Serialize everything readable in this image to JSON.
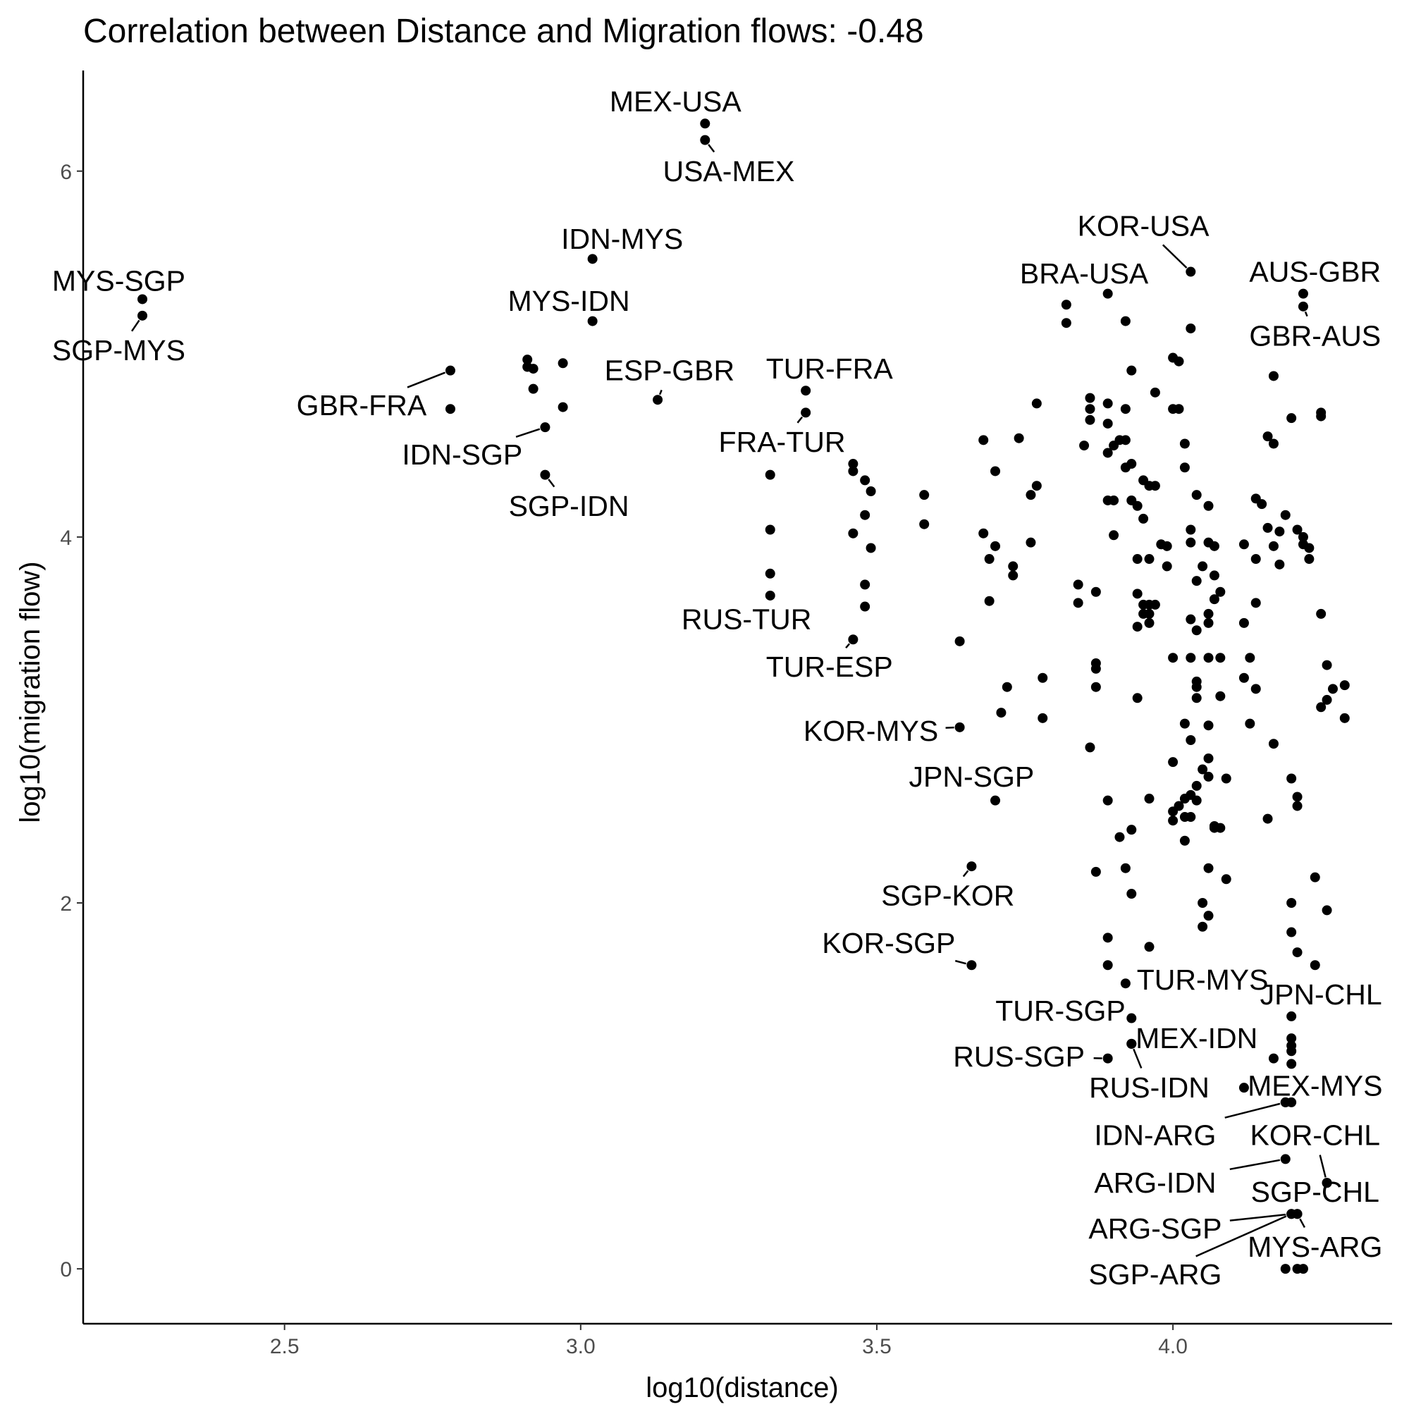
{
  "chart_data": {
    "type": "scatter",
    "title": "Correlation between Distance and Migration flows: -0.48",
    "xlabel": "log10(distance)",
    "ylabel": "log10(migration flow)",
    "xlim": [
      2.16,
      4.37
    ],
    "ylim": [
      -0.3,
      6.55
    ],
    "x_ticks": [
      2.5,
      3.0,
      3.5,
      4.0
    ],
    "x_tick_labels": [
      "2.5",
      "3.0",
      "3.5",
      "4.0"
    ],
    "y_ticks": [
      0,
      2,
      4,
      6
    ],
    "y_tick_labels": [
      "0",
      "2",
      "4",
      "6"
    ],
    "grid": false,
    "legend": "none",
    "point_color": "#000000",
    "labeled_points": [
      {
        "label": "MEX-USA",
        "x": 3.21,
        "y": 6.26,
        "lx": 3.16,
        "ly": 6.38
      },
      {
        "label": "USA-MEX",
        "x": 3.21,
        "y": 6.17,
        "lx": 3.25,
        "ly": 6.0
      },
      {
        "label": "IDN-MYS",
        "x": 3.02,
        "y": 5.52,
        "lx": 3.07,
        "ly": 5.63
      },
      {
        "label": "MYS-IDN",
        "x": 3.02,
        "y": 5.18,
        "lx": 2.98,
        "ly": 5.29
      },
      {
        "label": "MYS-SGP",
        "x": 2.26,
        "y": 5.3,
        "lx": 2.22,
        "ly": 5.4
      },
      {
        "label": "SGP-MYS",
        "x": 2.26,
        "y": 5.21,
        "lx": 2.22,
        "ly": 5.02
      },
      {
        "label": "GBR-FRA",
        "x": 2.78,
        "y": 4.91,
        "lx": 2.63,
        "ly": 4.72
      },
      {
        "label": "IDN-SGP",
        "x": 2.94,
        "y": 4.6,
        "lx": 2.8,
        "ly": 4.45
      },
      {
        "label": "SGP-IDN",
        "x": 2.94,
        "y": 4.34,
        "lx": 2.98,
        "ly": 4.17
      },
      {
        "label": "ESP-GBR",
        "x": 3.13,
        "y": 4.75,
        "lx": 3.15,
        "ly": 4.91
      },
      {
        "label": "TUR-FRA",
        "x": 3.38,
        "y": 4.8,
        "lx": 3.42,
        "ly": 4.92
      },
      {
        "label": "FRA-TUR",
        "x": 3.38,
        "y": 4.68,
        "lx": 3.34,
        "ly": 4.52
      },
      {
        "label": "RUS-TUR",
        "x": 3.32,
        "y": 3.68,
        "lx": 3.28,
        "ly": 3.55
      },
      {
        "label": "TUR-ESP",
        "x": 3.46,
        "y": 3.44,
        "lx": 3.42,
        "ly": 3.29
      },
      {
        "label": "KOR-MYS",
        "x": 3.64,
        "y": 2.96,
        "lx": 3.49,
        "ly": 2.94
      },
      {
        "label": "JPN-SGP",
        "x": 3.7,
        "y": 2.56,
        "lx": 3.66,
        "ly": 2.69
      },
      {
        "label": "SGP-KOR",
        "x": 3.66,
        "y": 2.2,
        "lx": 3.62,
        "ly": 2.04
      },
      {
        "label": "KOR-SGP",
        "x": 3.66,
        "y": 1.66,
        "lx": 3.52,
        "ly": 1.78
      },
      {
        "label": "TUR-MYS",
        "x": 3.92,
        "y": 1.56,
        "lx": 4.05,
        "ly": 1.58
      },
      {
        "label": "TUR-SGP",
        "x": 3.93,
        "y": 1.37,
        "lx": 3.81,
        "ly": 1.41
      },
      {
        "label": "RUS-SGP",
        "x": 3.89,
        "y": 1.15,
        "lx": 3.74,
        "ly": 1.16
      },
      {
        "label": "MEX-IDN",
        "x": 3.93,
        "y": 1.23,
        "lx": 4.04,
        "ly": 1.26
      },
      {
        "label": "RUS-IDN",
        "x": 3.93,
        "y": 1.23,
        "lx": 3.96,
        "ly": 0.99
      },
      {
        "label": "JPN-CHL",
        "x": 4.2,
        "y": 1.38,
        "lx": 4.25,
        "ly": 1.5
      },
      {
        "label": "MEX-MYS",
        "x": 4.19,
        "y": 0.91,
        "lx": 4.24,
        "ly": 1.0
      },
      {
        "label": "IDN-ARG",
        "x": 4.19,
        "y": 0.91,
        "lx": 3.97,
        "ly": 0.73
      },
      {
        "label": "KOR-CHL",
        "x": 4.26,
        "y": 0.47,
        "lx": 4.24,
        "ly": 0.73
      },
      {
        "label": "ARG-IDN",
        "x": 4.19,
        "y": 0.6,
        "lx": 3.97,
        "ly": 0.47
      },
      {
        "label": "SGP-CHL",
        "x": 4.26,
        "y": 0.47,
        "lx": 4.24,
        "ly": 0.42
      },
      {
        "label": "ARG-SGP",
        "x": 4.2,
        "y": 0.3,
        "lx": 3.97,
        "ly": 0.22
      },
      {
        "label": "MYS-ARG",
        "x": 4.21,
        "y": 0.3,
        "lx": 4.24,
        "ly": 0.12
      },
      {
        "label": "SGP-ARG",
        "x": 4.2,
        "y": 0.3,
        "lx": 3.97,
        "ly": -0.03
      },
      {
        "label": "KOR-USA",
        "x": 4.03,
        "y": 5.45,
        "lx": 3.95,
        "ly": 5.7
      },
      {
        "label": "BRA-USA",
        "x": 3.89,
        "y": 5.33,
        "lx": 3.85,
        "ly": 5.44
      },
      {
        "label": "AUS-GBR",
        "x": 4.22,
        "y": 5.33,
        "lx": 4.24,
        "ly": 5.45
      },
      {
        "label": "GBR-AUS",
        "x": 4.22,
        "y": 5.26,
        "lx": 4.24,
        "ly": 5.1
      }
    ],
    "points": [
      [
        3.82,
        5.27
      ],
      [
        3.82,
        5.17
      ],
      [
        3.92,
        5.18
      ],
      [
        4.03,
        5.14
      ],
      [
        4.0,
        4.98
      ],
      [
        4.01,
        4.96
      ],
      [
        3.93,
        4.91
      ],
      [
        3.97,
        4.79
      ],
      [
        3.86,
        4.76
      ],
      [
        3.89,
        4.73
      ],
      [
        3.86,
        4.7
      ],
      [
        3.92,
        4.7
      ],
      [
        4.0,
        4.7
      ],
      [
        4.01,
        4.7
      ],
      [
        3.86,
        4.64
      ],
      [
        3.89,
        4.62
      ],
      [
        3.91,
        4.53
      ],
      [
        3.92,
        4.53
      ],
      [
        3.89,
        4.46
      ],
      [
        3.93,
        4.4
      ],
      [
        3.92,
        4.38
      ],
      [
        3.95,
        4.31
      ],
      [
        3.96,
        4.28
      ],
      [
        3.97,
        4.28
      ],
      [
        4.02,
        4.51
      ],
      [
        4.02,
        4.38
      ],
      [
        4.04,
        4.23
      ],
      [
        4.06,
        4.17
      ],
      [
        3.89,
        4.2
      ],
      [
        3.9,
        4.2
      ],
      [
        3.93,
        4.2
      ],
      [
        3.94,
        4.17
      ],
      [
        3.95,
        4.1
      ],
      [
        4.03,
        4.04
      ],
      [
        3.99,
        3.95
      ],
      [
        3.98,
        3.96
      ],
      [
        4.03,
        3.97
      ],
      [
        4.06,
        3.97
      ],
      [
        4.07,
        3.95
      ],
      [
        3.94,
        3.88
      ],
      [
        3.96,
        3.88
      ],
      [
        3.99,
        3.84
      ],
      [
        4.05,
        3.84
      ],
      [
        4.07,
        3.79
      ],
      [
        4.04,
        3.76
      ],
      [
        4.08,
        3.7
      ],
      [
        4.07,
        3.66
      ],
      [
        3.94,
        3.69
      ],
      [
        3.95,
        3.63
      ],
      [
        3.96,
        3.63
      ],
      [
        3.97,
        3.63
      ],
      [
        3.96,
        3.58
      ],
      [
        3.95,
        3.58
      ],
      [
        3.96,
        3.53
      ],
      [
        3.94,
        3.51
      ],
      [
        4.03,
        3.55
      ],
      [
        4.06,
        3.58
      ],
      [
        4.06,
        3.53
      ],
      [
        4.04,
        3.49
      ],
      [
        4.0,
        3.34
      ],
      [
        4.03,
        3.34
      ],
      [
        4.06,
        3.34
      ],
      [
        4.08,
        3.34
      ],
      [
        3.87,
        3.31
      ],
      [
        3.87,
        3.28
      ],
      [
        4.04,
        3.21
      ],
      [
        4.04,
        3.18
      ],
      [
        3.87,
        3.18
      ],
      [
        4.04,
        3.12
      ],
      [
        4.08,
        3.13
      ],
      [
        3.94,
        3.12
      ],
      [
        4.02,
        2.98
      ],
      [
        4.06,
        2.97
      ],
      [
        4.03,
        2.89
      ],
      [
        3.86,
        2.85
      ],
      [
        4.0,
        2.77
      ],
      [
        4.06,
        2.79
      ],
      [
        4.05,
        2.73
      ],
      [
        4.09,
        2.68
      ],
      [
        4.06,
        2.69
      ],
      [
        4.04,
        2.64
      ],
      [
        3.89,
        2.56
      ],
      [
        3.96,
        2.57
      ],
      [
        4.03,
        2.59
      ],
      [
        4.02,
        2.57
      ],
      [
        4.04,
        2.56
      ],
      [
        4.01,
        2.53
      ],
      [
        4.0,
        2.5
      ],
      [
        4.03,
        2.47
      ],
      [
        4.02,
        2.47
      ],
      [
        4.0,
        2.45
      ],
      [
        4.07,
        2.42
      ],
      [
        4.07,
        2.41
      ],
      [
        4.08,
        2.41
      ],
      [
        3.93,
        2.4
      ],
      [
        3.91,
        2.36
      ],
      [
        4.02,
        2.34
      ],
      [
        4.06,
        2.19
      ],
      [
        4.09,
        2.13
      ],
      [
        3.87,
        2.17
      ],
      [
        3.92,
        2.19
      ],
      [
        3.93,
        2.05
      ],
      [
        4.05,
        2.0
      ],
      [
        4.06,
        1.93
      ],
      [
        4.05,
        1.87
      ],
      [
        3.89,
        1.81
      ],
      [
        3.96,
        1.76
      ],
      [
        3.89,
        1.66
      ],
      [
        4.12,
        3.96
      ],
      [
        4.14,
        4.21
      ],
      [
        4.15,
        4.18
      ],
      [
        4.16,
        4.05
      ],
      [
        4.14,
        3.88
      ],
      [
        4.17,
        3.95
      ],
      [
        4.18,
        4.03
      ],
      [
        4.18,
        3.85
      ],
      [
        4.19,
        4.12
      ],
      [
        4.21,
        4.04
      ],
      [
        4.22,
        4.0
      ],
      [
        4.22,
        3.96
      ],
      [
        4.23,
        3.88
      ],
      [
        4.23,
        3.94
      ],
      [
        4.17,
        4.88
      ],
      [
        4.2,
        4.65
      ],
      [
        4.25,
        4.68
      ],
      [
        4.25,
        4.66
      ],
      [
        4.16,
        4.55
      ],
      [
        4.17,
        4.51
      ],
      [
        4.14,
        3.64
      ],
      [
        4.12,
        3.53
      ],
      [
        4.25,
        3.58
      ],
      [
        4.13,
        3.34
      ],
      [
        4.26,
        3.3
      ],
      [
        4.12,
        3.23
      ],
      [
        4.14,
        3.17
      ],
      [
        4.27,
        3.17
      ],
      [
        4.25,
        3.07
      ],
      [
        4.26,
        3.11
      ],
      [
        4.29,
        3.19
      ],
      [
        4.29,
        3.01
      ],
      [
        4.13,
        2.98
      ],
      [
        4.17,
        2.87
      ],
      [
        4.2,
        2.68
      ],
      [
        4.21,
        2.58
      ],
      [
        4.21,
        2.53
      ],
      [
        4.16,
        2.46
      ],
      [
        4.24,
        2.14
      ],
      [
        4.26,
        1.96
      ],
      [
        4.2,
        2.0
      ],
      [
        4.2,
        1.84
      ],
      [
        4.21,
        1.73
      ],
      [
        4.24,
        1.66
      ],
      [
        4.2,
        1.26
      ],
      [
        4.2,
        1.22
      ],
      [
        4.2,
        1.19
      ],
      [
        4.17,
        1.15
      ],
      [
        4.2,
        1.12
      ],
      [
        4.12,
        0.99
      ],
      [
        4.2,
        0.91
      ],
      [
        4.21,
        0.3
      ],
      [
        4.19,
        0.0
      ],
      [
        4.21,
        0.0
      ],
      [
        4.22,
        0.0
      ],
      [
        3.58,
        4.23
      ],
      [
        3.58,
        4.07
      ],
      [
        3.64,
        3.43
      ],
      [
        3.68,
        4.53
      ],
      [
        3.68,
        4.02
      ],
      [
        3.69,
        3.88
      ],
      [
        3.69,
        3.65
      ],
      [
        3.7,
        4.36
      ],
      [
        3.7,
        3.95
      ],
      [
        3.73,
        3.79
      ],
      [
        3.73,
        3.84
      ],
      [
        3.74,
        4.54
      ],
      [
        3.76,
        4.23
      ],
      [
        3.76,
        3.97
      ],
      [
        3.77,
        4.28
      ],
      [
        3.77,
        4.73
      ],
      [
        3.78,
        3.23
      ],
      [
        3.78,
        3.01
      ],
      [
        3.72,
        3.18
      ],
      [
        3.71,
        3.04
      ],
      [
        3.84,
        3.74
      ],
      [
        3.84,
        3.64
      ],
      [
        3.87,
        3.7
      ],
      [
        3.85,
        4.5
      ],
      [
        3.9,
        4.5
      ],
      [
        3.9,
        4.01
      ],
      [
        2.78,
        4.7
      ],
      [
        2.91,
        4.97
      ],
      [
        2.91,
        4.93
      ],
      [
        2.92,
        4.92
      ],
      [
        2.92,
        4.81
      ],
      [
        2.97,
        4.95
      ],
      [
        2.97,
        4.71
      ],
      [
        3.32,
        4.34
      ],
      [
        3.32,
        4.04
      ],
      [
        3.32,
        3.8
      ],
      [
        3.46,
        4.4
      ],
      [
        3.46,
        4.36
      ],
      [
        3.48,
        4.31
      ],
      [
        3.49,
        4.25
      ],
      [
        3.48,
        4.12
      ],
      [
        3.46,
        4.02
      ],
      [
        3.49,
        3.94
      ],
      [
        3.48,
        3.74
      ],
      [
        3.48,
        3.62
      ]
    ]
  }
}
